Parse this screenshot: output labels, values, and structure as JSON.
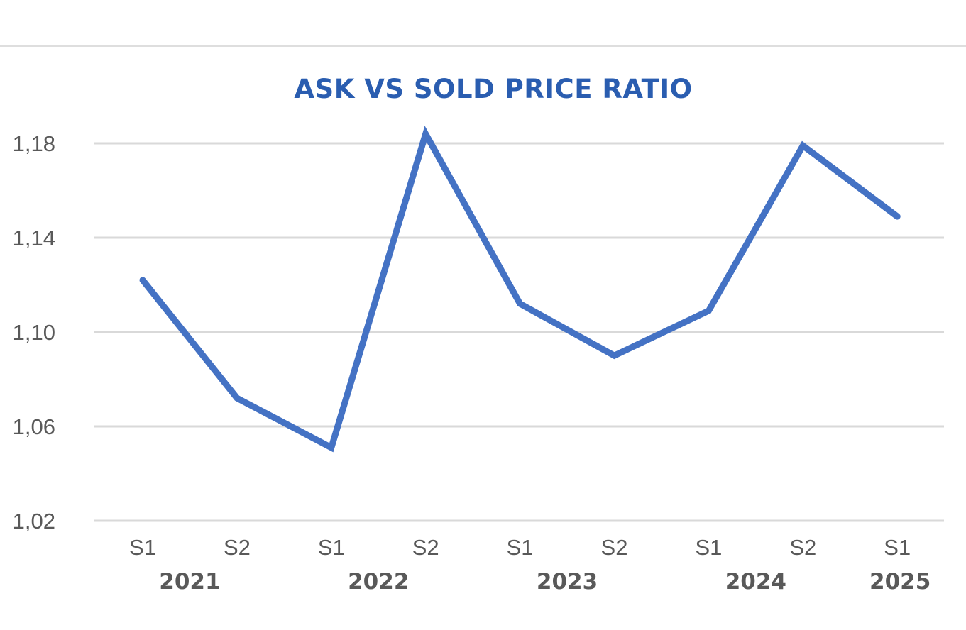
{
  "chart_data": {
    "type": "line",
    "title": "ASK VS SOLD PRICE RATIO",
    "categories": [
      "S1",
      "S2",
      "S1",
      "S2",
      "S1",
      "S2",
      "S1",
      "S2",
      "S1"
    ],
    "groups": [
      {
        "label": "2021",
        "start": 0,
        "end": 1
      },
      {
        "label": "2022",
        "start": 2,
        "end": 3
      },
      {
        "label": "2023",
        "start": 4,
        "end": 5
      },
      {
        "label": "2024",
        "start": 6,
        "end": 7
      },
      {
        "label": "2025",
        "start": 8,
        "end": 8
      }
    ],
    "series": [
      {
        "values": [
          1.122,
          1.072,
          1.051,
          1.184,
          1.112,
          1.09,
          1.109,
          1.179,
          1.149
        ]
      }
    ],
    "ylim": [
      1.02,
      1.18
    ],
    "yticks": [
      "1,02",
      "1,06",
      "1,10",
      "1,14",
      "1,18"
    ],
    "ytick_values": [
      1.02,
      1.06,
      1.1,
      1.14,
      1.18
    ],
    "grid": true,
    "legend": "none",
    "line_color": "#4472c4",
    "title_color": "#2a5db0",
    "grid_color": "#d9d9d9"
  }
}
